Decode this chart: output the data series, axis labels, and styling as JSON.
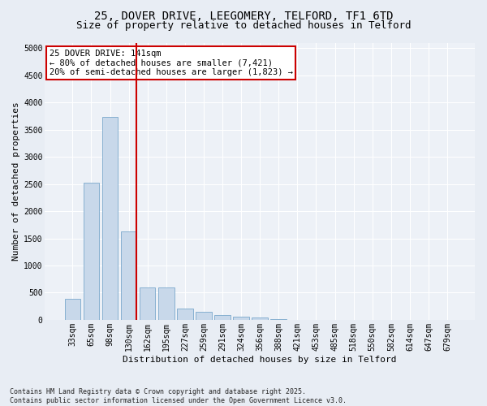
{
  "title1": "25, DOVER DRIVE, LEEGOMERY, TELFORD, TF1 6TD",
  "title2": "Size of property relative to detached houses in Telford",
  "xlabel": "Distribution of detached houses by size in Telford",
  "ylabel": "Number of detached properties",
  "categories": [
    "33sqm",
    "65sqm",
    "98sqm",
    "130sqm",
    "162sqm",
    "195sqm",
    "227sqm",
    "259sqm",
    "291sqm",
    "324sqm",
    "356sqm",
    "388sqm",
    "421sqm",
    "453sqm",
    "485sqm",
    "518sqm",
    "550sqm",
    "582sqm",
    "614sqm",
    "647sqm",
    "679sqm"
  ],
  "values": [
    380,
    2530,
    3730,
    1620,
    600,
    600,
    210,
    150,
    90,
    60,
    50,
    10,
    5,
    3,
    2,
    1,
    1,
    0,
    0,
    0,
    0
  ],
  "bar_color": "#c8d8ea",
  "bar_edge_color": "#7aa8cc",
  "highlight_index": 3,
  "highlight_line_color": "#cc0000",
  "annotation_box_color": "#ffffff",
  "annotation_border_color": "#cc0000",
  "annotation_text_line1": "25 DOVER DRIVE: 141sqm",
  "annotation_text_line2": "← 80% of detached houses are smaller (7,421)",
  "annotation_text_line3": "20% of semi-detached houses are larger (1,823) →",
  "annotation_fontsize": 7.5,
  "title1_fontsize": 10,
  "title2_fontsize": 9,
  "ylabel_fontsize": 8,
  "xlabel_fontsize": 8,
  "tick_fontsize": 7,
  "ylim": [
    0,
    5100
  ],
  "yticks": [
    0,
    500,
    1000,
    1500,
    2000,
    2500,
    3000,
    3500,
    4000,
    4500,
    5000
  ],
  "footer_line1": "Contains HM Land Registry data © Crown copyright and database right 2025.",
  "footer_line2": "Contains public sector information licensed under the Open Government Licence v3.0.",
  "bg_color": "#e8edf4",
  "plot_bg_color": "#edf1f7",
  "grid_color": "#ffffff"
}
